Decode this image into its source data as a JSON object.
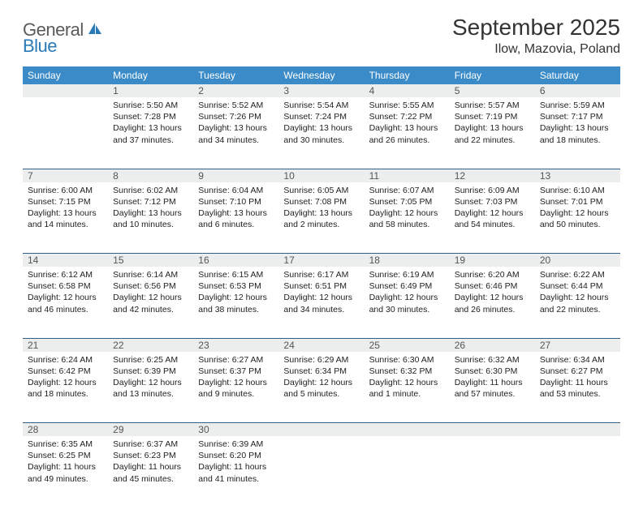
{
  "logo": {
    "text1": "General",
    "text2": "Blue"
  },
  "month_title": "September 2025",
  "location": "Ilow, Mazovia, Poland",
  "colors": {
    "header_bg": "#3b8bc8",
    "header_text": "#ffffff",
    "daynum_bg": "#eceded",
    "row_border": "#2e5f8a",
    "logo_gray": "#5a5a5a",
    "logo_blue": "#2a7ab8"
  },
  "day_headers": [
    "Sunday",
    "Monday",
    "Tuesday",
    "Wednesday",
    "Thursday",
    "Friday",
    "Saturday"
  ],
  "weeks": [
    {
      "nums": [
        "",
        "1",
        "2",
        "3",
        "4",
        "5",
        "6"
      ],
      "cells": [
        null,
        {
          "sunrise": "Sunrise: 5:50 AM",
          "sunset": "Sunset: 7:28 PM",
          "daylight": "Daylight: 13 hours and 37 minutes."
        },
        {
          "sunrise": "Sunrise: 5:52 AM",
          "sunset": "Sunset: 7:26 PM",
          "daylight": "Daylight: 13 hours and 34 minutes."
        },
        {
          "sunrise": "Sunrise: 5:54 AM",
          "sunset": "Sunset: 7:24 PM",
          "daylight": "Daylight: 13 hours and 30 minutes."
        },
        {
          "sunrise": "Sunrise: 5:55 AM",
          "sunset": "Sunset: 7:22 PM",
          "daylight": "Daylight: 13 hours and 26 minutes."
        },
        {
          "sunrise": "Sunrise: 5:57 AM",
          "sunset": "Sunset: 7:19 PM",
          "daylight": "Daylight: 13 hours and 22 minutes."
        },
        {
          "sunrise": "Sunrise: 5:59 AM",
          "sunset": "Sunset: 7:17 PM",
          "daylight": "Daylight: 13 hours and 18 minutes."
        }
      ]
    },
    {
      "nums": [
        "7",
        "8",
        "9",
        "10",
        "11",
        "12",
        "13"
      ],
      "cells": [
        {
          "sunrise": "Sunrise: 6:00 AM",
          "sunset": "Sunset: 7:15 PM",
          "daylight": "Daylight: 13 hours and 14 minutes."
        },
        {
          "sunrise": "Sunrise: 6:02 AM",
          "sunset": "Sunset: 7:12 PM",
          "daylight": "Daylight: 13 hours and 10 minutes."
        },
        {
          "sunrise": "Sunrise: 6:04 AM",
          "sunset": "Sunset: 7:10 PM",
          "daylight": "Daylight: 13 hours and 6 minutes."
        },
        {
          "sunrise": "Sunrise: 6:05 AM",
          "sunset": "Sunset: 7:08 PM",
          "daylight": "Daylight: 13 hours and 2 minutes."
        },
        {
          "sunrise": "Sunrise: 6:07 AM",
          "sunset": "Sunset: 7:05 PM",
          "daylight": "Daylight: 12 hours and 58 minutes."
        },
        {
          "sunrise": "Sunrise: 6:09 AM",
          "sunset": "Sunset: 7:03 PM",
          "daylight": "Daylight: 12 hours and 54 minutes."
        },
        {
          "sunrise": "Sunrise: 6:10 AM",
          "sunset": "Sunset: 7:01 PM",
          "daylight": "Daylight: 12 hours and 50 minutes."
        }
      ]
    },
    {
      "nums": [
        "14",
        "15",
        "16",
        "17",
        "18",
        "19",
        "20"
      ],
      "cells": [
        {
          "sunrise": "Sunrise: 6:12 AM",
          "sunset": "Sunset: 6:58 PM",
          "daylight": "Daylight: 12 hours and 46 minutes."
        },
        {
          "sunrise": "Sunrise: 6:14 AM",
          "sunset": "Sunset: 6:56 PM",
          "daylight": "Daylight: 12 hours and 42 minutes."
        },
        {
          "sunrise": "Sunrise: 6:15 AM",
          "sunset": "Sunset: 6:53 PM",
          "daylight": "Daylight: 12 hours and 38 minutes."
        },
        {
          "sunrise": "Sunrise: 6:17 AM",
          "sunset": "Sunset: 6:51 PM",
          "daylight": "Daylight: 12 hours and 34 minutes."
        },
        {
          "sunrise": "Sunrise: 6:19 AM",
          "sunset": "Sunset: 6:49 PM",
          "daylight": "Daylight: 12 hours and 30 minutes."
        },
        {
          "sunrise": "Sunrise: 6:20 AM",
          "sunset": "Sunset: 6:46 PM",
          "daylight": "Daylight: 12 hours and 26 minutes."
        },
        {
          "sunrise": "Sunrise: 6:22 AM",
          "sunset": "Sunset: 6:44 PM",
          "daylight": "Daylight: 12 hours and 22 minutes."
        }
      ]
    },
    {
      "nums": [
        "21",
        "22",
        "23",
        "24",
        "25",
        "26",
        "27"
      ],
      "cells": [
        {
          "sunrise": "Sunrise: 6:24 AM",
          "sunset": "Sunset: 6:42 PM",
          "daylight": "Daylight: 12 hours and 18 minutes."
        },
        {
          "sunrise": "Sunrise: 6:25 AM",
          "sunset": "Sunset: 6:39 PM",
          "daylight": "Daylight: 12 hours and 13 minutes."
        },
        {
          "sunrise": "Sunrise: 6:27 AM",
          "sunset": "Sunset: 6:37 PM",
          "daylight": "Daylight: 12 hours and 9 minutes."
        },
        {
          "sunrise": "Sunrise: 6:29 AM",
          "sunset": "Sunset: 6:34 PM",
          "daylight": "Daylight: 12 hours and 5 minutes."
        },
        {
          "sunrise": "Sunrise: 6:30 AM",
          "sunset": "Sunset: 6:32 PM",
          "daylight": "Daylight: 12 hours and 1 minute."
        },
        {
          "sunrise": "Sunrise: 6:32 AM",
          "sunset": "Sunset: 6:30 PM",
          "daylight": "Daylight: 11 hours and 57 minutes."
        },
        {
          "sunrise": "Sunrise: 6:34 AM",
          "sunset": "Sunset: 6:27 PM",
          "daylight": "Daylight: 11 hours and 53 minutes."
        }
      ]
    },
    {
      "nums": [
        "28",
        "29",
        "30",
        "",
        "",
        "",
        ""
      ],
      "cells": [
        {
          "sunrise": "Sunrise: 6:35 AM",
          "sunset": "Sunset: 6:25 PM",
          "daylight": "Daylight: 11 hours and 49 minutes."
        },
        {
          "sunrise": "Sunrise: 6:37 AM",
          "sunset": "Sunset: 6:23 PM",
          "daylight": "Daylight: 11 hours and 45 minutes."
        },
        {
          "sunrise": "Sunrise: 6:39 AM",
          "sunset": "Sunset: 6:20 PM",
          "daylight": "Daylight: 11 hours and 41 minutes."
        },
        null,
        null,
        null,
        null
      ]
    }
  ]
}
